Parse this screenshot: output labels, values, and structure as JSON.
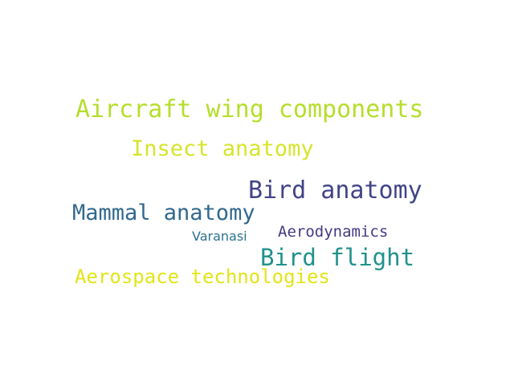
{
  "words": [
    {
      "id": "w-aircraft",
      "text": "Aircraft wing components",
      "color": "#b5de2b"
    },
    {
      "id": "w-insect",
      "text": "Insect anatomy",
      "color": "#d6e52a"
    },
    {
      "id": "w-bird-anat",
      "text": "Bird anatomy",
      "color": "#414487"
    },
    {
      "id": "w-mammal",
      "text": "Mammal anatomy",
      "color": "#31688e"
    },
    {
      "id": "w-aero",
      "text": "Aerodynamics",
      "color": "#443a83"
    },
    {
      "id": "w-varanasi",
      "text": "Varanasi",
      "color": "#2c728e"
    },
    {
      "id": "w-flight",
      "text": "Bird flight",
      "color": "#21918c"
    },
    {
      "id": "w-aerospace",
      "text": "Aerospace technologies",
      "color": "#e2e418"
    }
  ]
}
